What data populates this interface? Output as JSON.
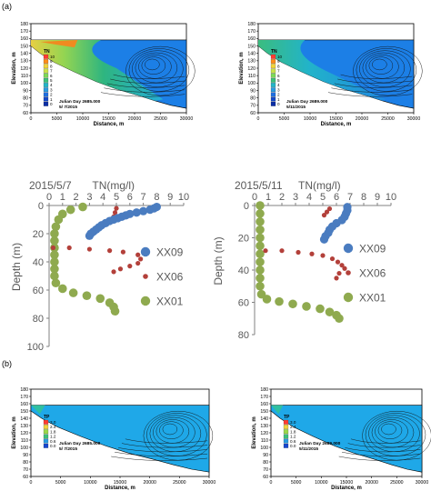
{
  "panel_labels": [
    "(a)",
    "(b)"
  ],
  "contour_plots": [
    {
      "id": "a-left",
      "variable": "TN",
      "legend_title": "TN",
      "legend_values": [
        "10",
        "9",
        "8",
        "7",
        "6",
        "5",
        "4",
        "3",
        "2",
        "1",
        "0"
      ],
      "annot_day": "Julian Day  2685.000",
      "annot_date": "5/ 7/2015",
      "xlabel": "Distance, m",
      "ylabel": "Elevation, m",
      "xticks": [
        "0",
        "5000",
        "10000",
        "15000",
        "20000",
        "25000",
        "30000"
      ],
      "yticks": [
        "60",
        "70",
        "80",
        "90",
        "100",
        "110",
        "120",
        "130",
        "140",
        "150",
        "160",
        "170",
        "180"
      ]
    },
    {
      "id": "a-right",
      "variable": "TN",
      "legend_title": "TN",
      "legend_values": [
        "10",
        "9",
        "8",
        "7",
        "6",
        "5",
        "4",
        "3",
        "2",
        "1",
        "0"
      ],
      "annot_day": "Julian Day  2689.000",
      "annot_date": "5/11/2015",
      "xlabel": "Distance, m",
      "ylabel": "Elevation, m",
      "xticks": [
        "0",
        "5000",
        "10000",
        "15000",
        "20000",
        "25000",
        "30000"
      ],
      "yticks": [
        "60",
        "70",
        "80",
        "90",
        "100",
        "110",
        "120",
        "130",
        "140",
        "150",
        "160",
        "170",
        "180"
      ]
    },
    {
      "id": "b-left",
      "variable": "TP",
      "legend_title": "TP",
      "legend_values": [
        "3.0",
        "2.4",
        "1.8",
        "1.2",
        "0.6",
        "0.0"
      ],
      "annot_day": "Julian Day  2685.000",
      "annot_date": "5/ 7/2015",
      "xlabel": "Distance, m",
      "ylabel": "Elevation, m",
      "xticks": [
        "0",
        "5000",
        "10000",
        "15000",
        "20000",
        "25000",
        "30000"
      ],
      "yticks": [
        "60",
        "70",
        "80",
        "90",
        "100",
        "110",
        "120",
        "130",
        "140",
        "150",
        "160",
        "170",
        "180"
      ]
    },
    {
      "id": "b-right",
      "variable": "TP",
      "legend_title": "TP",
      "legend_values": [
        "3.0",
        "2.4",
        "1.8",
        "1.2",
        "0.6",
        "0.0"
      ],
      "annot_day": "Julian Day  2689.000",
      "annot_date": "5/11/2015",
      "xlabel": "Distance, m",
      "ylabel": "Elevation, m",
      "xticks": [
        "0",
        "5000",
        "10000",
        "15000",
        "20000",
        "25000",
        "30000"
      ],
      "yticks": [
        "60",
        "70",
        "80",
        "90",
        "100",
        "110",
        "120",
        "130",
        "140",
        "150",
        "160",
        "170",
        "180"
      ]
    }
  ],
  "colors": {
    "XX09": "#4a7cc0",
    "XX06": "#b3403a",
    "XX01": "#8faa4f"
  },
  "chart_data": [
    {
      "type": "scatter",
      "title": "2015/5/7",
      "xlabel": "TN(mg/l)",
      "ylabel": "Depth (m)",
      "xlim": [
        0,
        10
      ],
      "ylim": [
        0,
        100
      ],
      "y_inverted": true,
      "x_axis_position": "top",
      "xticks": [
        "0",
        "1",
        "2",
        "3",
        "4",
        "5",
        "6",
        "7",
        "8",
        "9",
        "10"
      ],
      "yticks": [
        "0",
        "20",
        "40",
        "60",
        "80",
        "100"
      ],
      "legend_position": "right",
      "series": [
        {
          "name": "XX09",
          "points": [
            [
              8.0,
              1
            ],
            [
              7.8,
              2
            ],
            [
              7.5,
              3
            ],
            [
              7.0,
              4
            ],
            [
              6.5,
              5
            ],
            [
              6.0,
              6
            ],
            [
              5.7,
              7
            ],
            [
              5.4,
              8
            ],
            [
              5.1,
              9
            ],
            [
              4.8,
              10
            ],
            [
              4.5,
              11
            ],
            [
              4.2,
              12.5
            ],
            [
              3.9,
              14
            ],
            [
              3.7,
              15.5
            ],
            [
              3.5,
              17
            ],
            [
              3.3,
              18.5
            ],
            [
              3.1,
              20
            ],
            [
              3.0,
              21.5
            ]
          ]
        },
        {
          "name": "XX06",
          "points": [
            [
              5.0,
              2
            ],
            [
              4.9,
              5
            ],
            [
              4.8,
              8
            ],
            [
              4.6,
              11
            ],
            [
              0.3,
              30
            ],
            [
              1.5,
              30
            ],
            [
              3.0,
              31
            ],
            [
              4.5,
              32
            ],
            [
              5.5,
              33
            ],
            [
              6.6,
              35
            ],
            [
              6.8,
              38
            ],
            [
              6.6,
              41
            ],
            [
              6.0,
              43
            ],
            [
              5.3,
              45
            ],
            [
              4.8,
              47
            ]
          ]
        },
        {
          "name": "XX01",
          "points": [
            [
              2.5,
              1
            ],
            [
              1.6,
              3
            ],
            [
              1.0,
              6
            ],
            [
              0.7,
              10
            ],
            [
              0.5,
              15
            ],
            [
              0.4,
              20
            ],
            [
              0.4,
              25
            ],
            [
              0.4,
              30
            ],
            [
              0.4,
              35
            ],
            [
              0.4,
              40
            ],
            [
              0.4,
              45
            ],
            [
              0.4,
              50
            ],
            [
              0.5,
              55
            ],
            [
              1.0,
              59
            ],
            [
              1.8,
              62
            ],
            [
              2.8,
              64
            ],
            [
              3.8,
              66
            ],
            [
              4.5,
              69
            ],
            [
              4.8,
              72
            ],
            [
              4.9,
              75
            ]
          ]
        }
      ]
    },
    {
      "type": "scatter",
      "title": "2015/5/11",
      "xlabel": "TN(mg/l)",
      "ylabel": "Depth (m)",
      "xlim": [
        0,
        10
      ],
      "ylim": [
        0,
        80
      ],
      "y_inverted": true,
      "x_axis_position": "top",
      "xticks": [
        "0",
        "1",
        "2",
        "3",
        "4",
        "5",
        "6",
        "7",
        "8",
        "9",
        "10"
      ],
      "yticks": [
        "0",
        "20",
        "40",
        "60",
        "80"
      ],
      "legend_position": "right",
      "series": [
        {
          "name": "XX09",
          "points": [
            [
              6.8,
              1
            ],
            [
              6.8,
              3
            ],
            [
              6.7,
              5
            ],
            [
              6.6,
              7
            ],
            [
              6.4,
              9
            ],
            [
              6.0,
              11
            ],
            [
              5.7,
              13
            ],
            [
              5.5,
              15
            ],
            [
              5.4,
              17
            ],
            [
              5.2,
              19
            ],
            [
              5.1,
              21
            ]
          ]
        },
        {
          "name": "XX06",
          "points": [
            [
              5.5,
              2
            ],
            [
              5.3,
              4
            ],
            [
              5.1,
              6
            ],
            [
              0.8,
              28
            ],
            [
              2.0,
              28
            ],
            [
              3.2,
              29
            ],
            [
              4.2,
              30
            ],
            [
              5.0,
              31
            ],
            [
              5.7,
              33
            ],
            [
              6.1,
              35
            ],
            [
              6.4,
              37
            ],
            [
              6.6,
              39
            ],
            [
              6.2,
              42
            ],
            [
              6.0,
              45
            ]
          ]
        },
        {
          "name": "XX01",
          "points": [
            [
              0.4,
              0
            ],
            [
              0.4,
              5
            ],
            [
              0.4,
              10
            ],
            [
              0.4,
              15
            ],
            [
              0.4,
              20
            ],
            [
              0.4,
              25
            ],
            [
              0.4,
              30
            ],
            [
              0.4,
              35
            ],
            [
              0.4,
              40
            ],
            [
              0.4,
              45
            ],
            [
              0.4,
              50
            ],
            [
              0.5,
              55
            ],
            [
              0.9,
              58
            ],
            [
              1.8,
              59.5
            ],
            [
              2.8,
              61
            ],
            [
              3.8,
              62.5
            ],
            [
              4.8,
              64
            ],
            [
              5.5,
              66
            ],
            [
              6.0,
              68
            ],
            [
              6.2,
              70
            ]
          ]
        }
      ]
    }
  ]
}
